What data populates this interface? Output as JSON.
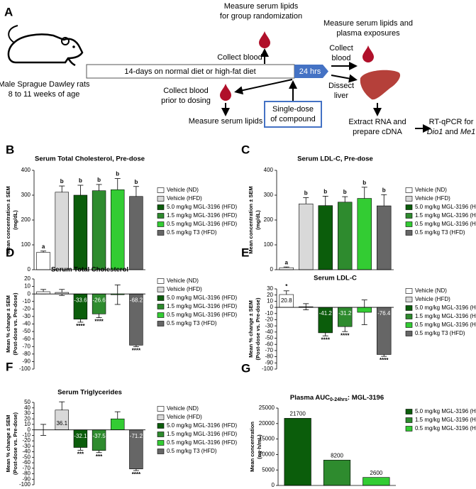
{
  "diagram": {
    "panel": "A",
    "rat_label": [
      "Male Sprague Dawley rats",
      "8 to 11 weeks of age"
    ],
    "timeline": "14-days on normal diet or high-fat diet",
    "timeline_end": "24 hrs",
    "randomization": [
      "Measure serum lipids",
      "for group randomization"
    ],
    "collect_blood_1": "Collect blood",
    "collect_blood_2": [
      "Collect blood",
      "prior to dosing"
    ],
    "measure_lipids": "Measure serum lipids",
    "dose": [
      "Single-dose",
      "of compound"
    ],
    "exposures": [
      "Measure serum lipids and",
      "plasma exposures"
    ],
    "collect_blood_3": [
      "Collect",
      "blood"
    ],
    "dissect": [
      "Dissect",
      "liver"
    ],
    "extract": [
      "Extract RNA and",
      "prepare cDNA"
    ],
    "rtqpcr": [
      "RT-qPCR for",
      "Dio1",
      "and",
      "Me1"
    ]
  },
  "chart_data": [
    {
      "type": "bar",
      "panel": "B",
      "title": "Serum Total Cholesterol,  Pre-dose",
      "ylabel": [
        "Mean concentration ± SEM",
        "(mg/dL)"
      ],
      "categories": [
        "Vehicle (ND)",
        "Vehicle (HFD)",
        "5.0 mg/kg MGL-3196 (HFD)",
        "1.5 mg/kg MGL-3196 (HFD)",
        "0.5 mg/kg MGL-3196 (HFD)",
        "0.5 mg/kg T3 (HFD)"
      ],
      "colors": [
        "#ffffff",
        "#d9d9d9",
        "#0b5d0b",
        "#2e8b2e",
        "#33cc33",
        "#666666"
      ],
      "values": [
        70,
        312,
        300,
        318,
        322,
        295
      ],
      "errors": [
        5,
        25,
        40,
        25,
        45,
        40
      ],
      "annotations": [
        "a",
        "b",
        "b",
        "b",
        "b",
        "b"
      ],
      "ylim": [
        0,
        400
      ],
      "yticks": [
        0,
        100,
        200,
        300,
        400
      ]
    },
    {
      "type": "bar",
      "panel": "C",
      "title": "Serum LDL-C,  Pre-dose",
      "ylabel": [
        "Mean concentration ± SEM",
        "(mg/dL)"
      ],
      "categories": [
        "Vehicle (ND)",
        "Vehicle (HFD)",
        "5.0 mg/kg MGL-3196 (HFD)",
        "1.5 mg/kg MGL-3196 (HFD)",
        "0.5 mg/kg MGL-3196 (HFD)",
        "0.5 mg/kg T3 (HFD)"
      ],
      "colors": [
        "#ffffff",
        "#d9d9d9",
        "#0b5d0b",
        "#2e8b2e",
        "#33cc33",
        "#666666"
      ],
      "values": [
        8,
        265,
        258,
        272,
        287,
        257
      ],
      "errors": [
        3,
        25,
        38,
        22,
        45,
        45
      ],
      "annotations": [
        "a",
        "b",
        "b",
        "b",
        "b",
        "b"
      ],
      "ylim": [
        0,
        400
      ],
      "yticks": [
        0,
        100,
        200,
        300,
        400
      ]
    },
    {
      "type": "bar",
      "panel": "D",
      "title": "Serum Total Cholesterol",
      "ylabel": [
        "Mean % change ± SEM",
        "(Post-dose vs. Pre-dose)"
      ],
      "categories": [
        "Vehicle (ND)",
        "Vehicle (HFD)",
        "5.0 mg/kg MGL-3196 (HFD)",
        "1.5 mg/kg MGL-3196 (HFD)",
        "0.5 mg/kg MGL-3196 (HFD)",
        "0.5 mg/kg T3 (HFD)"
      ],
      "colors": [
        "#ffffff",
        "#d9d9d9",
        "#0b5d0b",
        "#2e8b2e",
        "#33cc33",
        "#666666"
      ],
      "values": [
        3,
        2,
        -33.6,
        -26.6,
        -1,
        -68.2
      ],
      "errors": [
        3,
        4,
        4,
        5,
        13,
        2
      ],
      "value_labels": [
        null,
        null,
        "-33.6",
        "-26.6",
        null,
        "-68.2"
      ],
      "annotations": [
        null,
        null,
        "****",
        "****",
        null,
        "****"
      ],
      "ylim": [
        -100,
        20
      ],
      "yticks": [
        20,
        10,
        0,
        -10,
        -20,
        -30,
        -40,
        -50,
        -60,
        -70,
        -80,
        -90,
        -100
      ]
    },
    {
      "type": "bar",
      "panel": "E",
      "title": "Serum LDL-C",
      "ylabel": [
        "Mean % change ± SEM",
        "(Post-dose vs. Pre-dose)"
      ],
      "categories": [
        "Vehicle (ND)",
        "Vehicle (HFD)",
        "5.0 mg/kg MGL-3196 (HFD)",
        "1.5 mg/kg MGL-3196 (HFD)",
        "0.5 mg/kg MGL-3196 (HFD)",
        "0.5 mg/kg T3 (HFD)"
      ],
      "colors": [
        "#ffffff",
        "#d9d9d9",
        "#0b5d0b",
        "#2e8b2e",
        "#33cc33",
        "#666666"
      ],
      "values": [
        20.8,
        1,
        -41.2,
        -31.2,
        -8,
        -76.4
      ],
      "errors": [
        6,
        5,
        5,
        8,
        20,
        3
      ],
      "value_labels": [
        "20.8",
        null,
        "-41.2",
        "-31.2",
        null,
        "-76.4"
      ],
      "annotations": [
        "*",
        null,
        "****",
        "****",
        null,
        "****"
      ],
      "ylim": [
        -100,
        30
      ],
      "yticks": [
        30,
        20,
        10,
        0,
        -10,
        -20,
        -30,
        -40,
        -50,
        -60,
        -70,
        -80,
        -90,
        -100
      ]
    },
    {
      "type": "bar",
      "panel": "F",
      "title": "Serum Triglycerides",
      "ylabel": [
        "Mean % change ± SEM",
        "(Post-dose vs. Pre-dose)"
      ],
      "categories": [
        "Vehicle (ND)",
        "Vehicle (HFD)",
        "5.0 mg/kg MGL-3196 (HFD)",
        "1.5 mg/kg MGL-3196 (HFD)",
        "0.5 mg/kg MGL-3196 (HFD)",
        "0.5 mg/kg T3 (HFD)"
      ],
      "colors": [
        "#ffffff",
        "#d9d9d9",
        "#0b5d0b",
        "#2e8b2e",
        "#33cc33",
        "#666666"
      ],
      "values": [
        0,
        36.1,
        -32.1,
        -37.5,
        20,
        -71.2
      ],
      "errors": [
        10,
        15,
        5,
        4,
        13,
        3
      ],
      "value_labels": [
        null,
        "36.1",
        "-32.1",
        "-37.5",
        null,
        "-71.2"
      ],
      "annotations": [
        null,
        null,
        "***",
        "***",
        null,
        "****"
      ],
      "ylim": [
        -100,
        50
      ],
      "yticks": [
        50,
        40,
        30,
        20,
        10,
        0,
        -10,
        -20,
        -30,
        -40,
        -50,
        -60,
        -70,
        -80,
        -90,
        -100
      ]
    },
    {
      "type": "bar",
      "panel": "G",
      "title": "Plasma AUC",
      "title_subscript": "0-24hrs",
      "title_suffix": ":  MGL-3196",
      "ylabel": [
        "Mean concentration",
        "(ng·h/mL)"
      ],
      "categories": [
        "5.0 mg/kg MGL-3196 (HFD)",
        "1.5 mg/kg MGL-3196 (HFD)",
        "0.5 mg/kg MGL-3196 (HFD)"
      ],
      "colors": [
        "#0b5d0b",
        "#2e8b2e",
        "#33cc33"
      ],
      "values": [
        21700,
        8200,
        2600
      ],
      "data_labels": true,
      "ylim": [
        0,
        25000
      ],
      "yticks": [
        0,
        5000,
        10000,
        15000,
        20000,
        25000
      ]
    }
  ]
}
